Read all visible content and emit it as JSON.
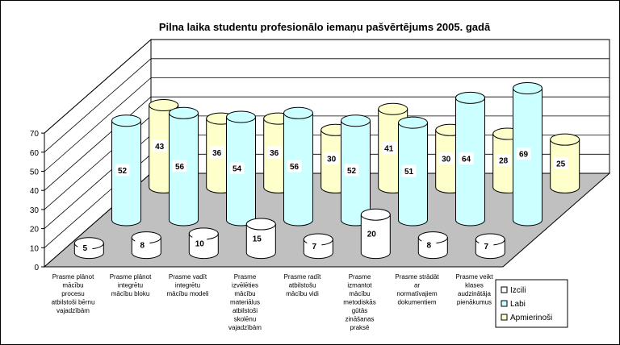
{
  "chart_data": {
    "type": "bar",
    "title": "Pilna laika studentu profesionālo iemaņu pašvērtējums 2005. gadā",
    "ylim": [
      0,
      70
    ],
    "yticks": [
      0,
      10,
      20,
      30,
      40,
      50,
      60,
      70
    ],
    "categories": [
      [
        "Prasme plānot",
        "mācību",
        "procesu",
        "atbilstoši bērnu",
        "vajadzībām"
      ],
      [
        "Prasme plānot",
        "integrētu",
        "mācību bloku"
      ],
      [
        "Prasme vadīt",
        "integrētu",
        "mācību modeli"
      ],
      [
        "Prasme",
        "izvēlēties",
        "mācību",
        "materiālus",
        "atbilstoši",
        "skolēnu",
        "vajadzībām"
      ],
      [
        "Prasme radīt",
        "atbilstošu",
        "mācību vidi"
      ],
      [
        "Prasme",
        "izmantot",
        "mācību",
        "metodiskās",
        "gūtās",
        "zināšanas",
        "praksē"
      ],
      [
        "Prasme strādāt",
        "ar",
        "normatīvajiem",
        "dokumentiem"
      ],
      [
        "Prasme veikt",
        "klases",
        "audzinātāja",
        "pienākumus"
      ]
    ],
    "series": [
      {
        "name": "Izcili",
        "color": "#ffffff",
        "values": [
          5,
          8,
          10,
          15,
          7,
          20,
          8,
          7
        ]
      },
      {
        "name": "Labi",
        "color": "#ccffff",
        "values": [
          52,
          56,
          54,
          56,
          52,
          51,
          64,
          69
        ]
      },
      {
        "name": "Apmierinoši",
        "color": "#ffffcc",
        "values": [
          43,
          36,
          36,
          30,
          41,
          30,
          28,
          25
        ]
      }
    ],
    "legend_position": "bottom-right",
    "grid": true
  }
}
